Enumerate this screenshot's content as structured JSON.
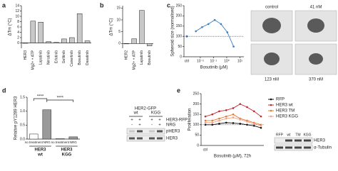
{
  "panels": [
    "a",
    "b",
    "c",
    "d",
    "e"
  ],
  "chart_data": [
    {
      "type": "bar",
      "ylabel": "ΔTm (°C)",
      "categories": [
        "HER3",
        "Mg2+ + ATP",
        "Lapatinib",
        "Neratinib",
        "Erlotinib",
        "Gefitinib",
        "Canertinib",
        "Bosutinib",
        "Dasatinib"
      ],
      "values": [
        0,
        8.2,
        7.8,
        0.5,
        0.2,
        1.5,
        2,
        11,
        0.8
      ],
      "color": "#c8c8c8",
      "ylim": [
        -2,
        14
      ],
      "yticks": [
        0,
        2,
        4,
        6,
        8,
        10,
        12,
        14
      ]
    },
    {
      "type": "bar",
      "ylabel": "ΔTm (°C)",
      "categories": [
        "HER2",
        "Mg2+ + ATP",
        "Lapatinib",
        "Bosutinib"
      ],
      "values": [
        0,
        2,
        14,
        -1
      ],
      "color": "#c8c8c8",
      "ylim": [
        -2,
        16
      ],
      "yticks": [
        0,
        5,
        10,
        15
      ]
    },
    {
      "type": "line",
      "ylabel": "Spheroid size (normalised)",
      "xlabel": "Bosutinib (μM)",
      "log_x": true,
      "ctrl": {
        "label": "ctrl",
        "value": 100
      },
      "reference_line": 100,
      "series": [
        {
          "color": "#3a7cc4",
          "x": [
            0.0046,
            0.0137,
            0.041,
            0.123,
            0.37,
            1.11,
            3.33
          ],
          "values": [
            125,
            145,
            160,
            180,
            160,
            120,
            50
          ]
        }
      ],
      "xlim": [
        0.002,
        20
      ],
      "xticks": [
        {
          "value": 0.01,
          "label": "10⁻²"
        },
        {
          "value": 0.1,
          "label": "10⁻¹"
        },
        {
          "value": 1,
          "label": "10⁰"
        },
        {
          "value": 10,
          "label": "10¹"
        }
      ],
      "ylim": [
        0,
        250
      ],
      "yticks": [
        0,
        50,
        100,
        150,
        200,
        250
      ]
    },
    {
      "type": "bar",
      "ylabel": "Relative pY1289 HER3",
      "categories": [
        "no treatment",
        "NRG",
        "no treatment",
        "NRG"
      ],
      "groups": [
        [
          "HER3",
          "wt"
        ],
        [
          "HER3",
          "KGG"
        ]
      ],
      "values": [
        0.18,
        1.05,
        0.02,
        0.08
      ],
      "colors": [
        "#ffffff",
        "#9a9a9a",
        "#ffffff",
        "#9a9a9a"
      ],
      "annotations": [
        "****",
        "****"
      ],
      "ylim": [
        0,
        1.5
      ],
      "yticks": [
        {
          "value": 0,
          "label": "0.0"
        },
        {
          "value": 0.5,
          "label": "0.5"
        },
        {
          "value": 1,
          "label": "1.0"
        },
        {
          "value": 1.5,
          "label": "1.5"
        }
      ]
    },
    {
      "type": "line",
      "ylabel": "Proliferation",
      "xlabel": "Bosutinib (μM), 72h",
      "reference_line": 100,
      "categories": [
        "ctrl",
        null,
        null,
        null,
        null,
        null,
        null,
        null,
        null
      ],
      "series": [
        {
          "name": "RFP",
          "color": "#111111",
          "values": [
            100,
            100,
            105,
            110,
            108,
            105,
            100,
            95,
            85
          ]
        },
        {
          "name": "HER3 wt",
          "color": "#c0282d",
          "values": [
            140,
            150,
            165,
            170,
            180,
            200,
            185,
            165,
            140
          ]
        },
        {
          "name": "HER3 TM",
          "color": "#e8772e",
          "values": [
            120,
            120,
            130,
            140,
            150,
            130,
            120,
            110,
            100
          ]
        },
        {
          "name": "HER3 KGG",
          "color": "#f0a08a",
          "values": [
            110,
            110,
            120,
            130,
            135,
            125,
            115,
            105,
            95
          ]
        }
      ],
      "ylim": [
        0,
        250
      ],
      "yticks": [
        0,
        50,
        100,
        150,
        200,
        250
      ]
    }
  ],
  "images_c": {
    "labels": [
      "control",
      "41 nM",
      "123 nM",
      "370 nM"
    ]
  },
  "blot_d": {
    "title": "HER2-GFP",
    "columns": [
      "wt",
      "KGG"
    ],
    "rows": [
      "HER3-RFP",
      "NRG"
    ],
    "signs": [
      [
        "+",
        "+",
        "+",
        "+"
      ],
      [
        "-",
        "+",
        "-",
        "+"
      ]
    ],
    "bands": [
      "pHER3",
      "HER3"
    ]
  },
  "blot_e": {
    "columns": [
      "RFP",
      "wt",
      "TM",
      "KGG"
    ],
    "bands": [
      "HER3",
      "α-Tubulin"
    ]
  }
}
